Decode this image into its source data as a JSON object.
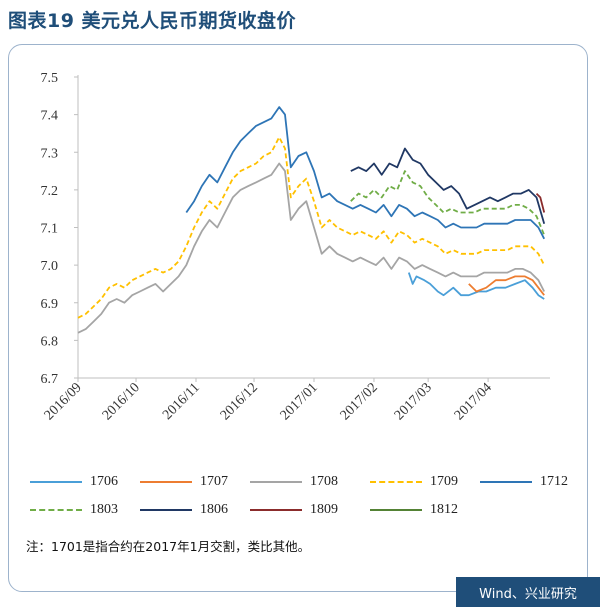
{
  "page": {
    "title": "图表19 美元兑人民币期货收盘价",
    "note": "注：1701是指合约在2017年1月交割，类比其他。",
    "source": "Wind、兴业研究"
  },
  "chart_data": {
    "type": "line",
    "ylim": [
      6.7,
      7.5
    ],
    "yticks": [
      "7.5",
      "7.4",
      "7.3",
      "7.2",
      "7.1",
      "7.0",
      "6.9",
      "6.8",
      "6.7"
    ],
    "xlim": [
      "2016-09-01",
      "2017-05-03"
    ],
    "xticks": [
      {
        "label": "2016/09",
        "date": "2016-09-01"
      },
      {
        "label": "2016/10",
        "date": "2016-10-01"
      },
      {
        "label": "2016/11",
        "date": "2016-11-01"
      },
      {
        "label": "2016/12",
        "date": "2016-12-01"
      },
      {
        "label": "2017/01",
        "date": "2017-01-01"
      },
      {
        "label": "2017/02",
        "date": "2017-02-01"
      },
      {
        "label": "2017/03",
        "date": "2017-03-01"
      },
      {
        "label": "2017/04",
        "date": "2017-04-01"
      }
    ],
    "grid": false,
    "legend_position": "bottom",
    "series": [
      {
        "name": "1706",
        "color": "#4a9fd8",
        "dash": false,
        "points": [
          [
            "2017-02-19",
            6.98
          ],
          [
            "2017-02-21",
            6.95
          ],
          [
            "2017-02-23",
            6.97
          ],
          [
            "2017-02-27",
            6.96
          ],
          [
            "2017-03-02",
            6.95
          ],
          [
            "2017-03-06",
            6.93
          ],
          [
            "2017-03-09",
            6.92
          ],
          [
            "2017-03-14",
            6.94
          ],
          [
            "2017-03-18",
            6.92
          ],
          [
            "2017-03-22",
            6.92
          ],
          [
            "2017-03-27",
            6.93
          ],
          [
            "2017-03-31",
            6.93
          ],
          [
            "2017-04-05",
            6.94
          ],
          [
            "2017-04-10",
            6.94
          ],
          [
            "2017-04-15",
            6.95
          ],
          [
            "2017-04-20",
            6.96
          ],
          [
            "2017-04-24",
            6.94
          ],
          [
            "2017-04-27",
            6.92
          ],
          [
            "2017-04-30",
            6.91
          ]
        ]
      },
      {
        "name": "1707",
        "color": "#ed7d31",
        "dash": false,
        "points": [
          [
            "2017-03-22",
            6.95
          ],
          [
            "2017-03-26",
            6.93
          ],
          [
            "2017-03-31",
            6.94
          ],
          [
            "2017-04-05",
            6.96
          ],
          [
            "2017-04-10",
            6.96
          ],
          [
            "2017-04-15",
            6.97
          ],
          [
            "2017-04-20",
            6.97
          ],
          [
            "2017-04-24",
            6.96
          ],
          [
            "2017-04-27",
            6.94
          ],
          [
            "2017-04-30",
            6.92
          ]
        ]
      },
      {
        "name": "1708",
        "color": "#a5a5a5",
        "dash": false,
        "points": [
          [
            "2016-09-01",
            6.82
          ],
          [
            "2016-09-05",
            6.83
          ],
          [
            "2016-09-09",
            6.85
          ],
          [
            "2016-09-13",
            6.87
          ],
          [
            "2016-09-17",
            6.9
          ],
          [
            "2016-09-21",
            6.91
          ],
          [
            "2016-09-25",
            6.9
          ],
          [
            "2016-09-29",
            6.92
          ],
          [
            "2016-10-03",
            6.93
          ],
          [
            "2016-10-07",
            6.94
          ],
          [
            "2016-10-11",
            6.95
          ],
          [
            "2016-10-15",
            6.93
          ],
          [
            "2016-10-19",
            6.95
          ],
          [
            "2016-10-23",
            6.97
          ],
          [
            "2016-10-27",
            7.0
          ],
          [
            "2016-10-31",
            7.05
          ],
          [
            "2016-11-04",
            7.09
          ],
          [
            "2016-11-08",
            7.12
          ],
          [
            "2016-11-12",
            7.1
          ],
          [
            "2016-11-16",
            7.14
          ],
          [
            "2016-11-20",
            7.18
          ],
          [
            "2016-11-24",
            7.2
          ],
          [
            "2016-11-28",
            7.21
          ],
          [
            "2016-12-02",
            7.22
          ],
          [
            "2016-12-06",
            7.23
          ],
          [
            "2016-12-10",
            7.24
          ],
          [
            "2016-12-14",
            7.27
          ],
          [
            "2016-12-17",
            7.25
          ],
          [
            "2016-12-20",
            7.12
          ],
          [
            "2016-12-24",
            7.15
          ],
          [
            "2016-12-28",
            7.17
          ],
          [
            "2017-01-01",
            7.1
          ],
          [
            "2017-01-05",
            7.03
          ],
          [
            "2017-01-09",
            7.05
          ],
          [
            "2017-01-13",
            7.03
          ],
          [
            "2017-01-17",
            7.02
          ],
          [
            "2017-01-21",
            7.01
          ],
          [
            "2017-01-25",
            7.02
          ],
          [
            "2017-01-29",
            7.01
          ],
          [
            "2017-02-02",
            7.0
          ],
          [
            "2017-02-06",
            7.02
          ],
          [
            "2017-02-10",
            6.99
          ],
          [
            "2017-02-14",
            7.02
          ],
          [
            "2017-02-18",
            7.01
          ],
          [
            "2017-02-22",
            6.99
          ],
          [
            "2017-02-26",
            7.0
          ],
          [
            "2017-03-02",
            6.99
          ],
          [
            "2017-03-06",
            6.98
          ],
          [
            "2017-03-10",
            6.97
          ],
          [
            "2017-03-14",
            6.98
          ],
          [
            "2017-03-18",
            6.97
          ],
          [
            "2017-03-22",
            6.97
          ],
          [
            "2017-03-26",
            6.97
          ],
          [
            "2017-03-30",
            6.98
          ],
          [
            "2017-04-03",
            6.98
          ],
          [
            "2017-04-07",
            6.98
          ],
          [
            "2017-04-11",
            6.98
          ],
          [
            "2017-04-15",
            6.99
          ],
          [
            "2017-04-19",
            6.99
          ],
          [
            "2017-04-23",
            6.98
          ],
          [
            "2017-04-27",
            6.96
          ],
          [
            "2017-04-30",
            6.93
          ]
        ]
      },
      {
        "name": "1709",
        "color": "#ffc000",
        "dash": true,
        "points": [
          [
            "2016-09-01",
            6.86
          ],
          [
            "2016-09-05",
            6.87
          ],
          [
            "2016-09-09",
            6.89
          ],
          [
            "2016-09-13",
            6.91
          ],
          [
            "2016-09-17",
            6.94
          ],
          [
            "2016-09-21",
            6.95
          ],
          [
            "2016-09-25",
            6.94
          ],
          [
            "2016-09-29",
            6.96
          ],
          [
            "2016-10-03",
            6.97
          ],
          [
            "2016-10-07",
            6.98
          ],
          [
            "2016-10-11",
            6.99
          ],
          [
            "2016-10-15",
            6.98
          ],
          [
            "2016-10-19",
            6.99
          ],
          [
            "2016-10-23",
            7.01
          ],
          [
            "2016-10-27",
            7.05
          ],
          [
            "2016-10-31",
            7.1
          ],
          [
            "2016-11-04",
            7.14
          ],
          [
            "2016-11-08",
            7.17
          ],
          [
            "2016-11-12",
            7.15
          ],
          [
            "2016-11-16",
            7.19
          ],
          [
            "2016-11-20",
            7.23
          ],
          [
            "2016-11-24",
            7.25
          ],
          [
            "2016-11-28",
            7.26
          ],
          [
            "2016-12-02",
            7.27
          ],
          [
            "2016-12-06",
            7.29
          ],
          [
            "2016-12-10",
            7.3
          ],
          [
            "2016-12-14",
            7.34
          ],
          [
            "2016-12-17",
            7.31
          ],
          [
            "2016-12-20",
            7.18
          ],
          [
            "2016-12-24",
            7.21
          ],
          [
            "2016-12-28",
            7.23
          ],
          [
            "2017-01-01",
            7.17
          ],
          [
            "2017-01-05",
            7.1
          ],
          [
            "2017-01-09",
            7.12
          ],
          [
            "2017-01-13",
            7.1
          ],
          [
            "2017-01-17",
            7.09
          ],
          [
            "2017-01-21",
            7.08
          ],
          [
            "2017-01-25",
            7.09
          ],
          [
            "2017-01-29",
            7.08
          ],
          [
            "2017-02-02",
            7.07
          ],
          [
            "2017-02-06",
            7.09
          ],
          [
            "2017-02-10",
            7.06
          ],
          [
            "2017-02-14",
            7.09
          ],
          [
            "2017-02-18",
            7.08
          ],
          [
            "2017-02-22",
            7.06
          ],
          [
            "2017-02-26",
            7.07
          ],
          [
            "2017-03-02",
            7.06
          ],
          [
            "2017-03-06",
            7.05
          ],
          [
            "2017-03-10",
            7.03
          ],
          [
            "2017-03-14",
            7.04
          ],
          [
            "2017-03-18",
            7.03
          ],
          [
            "2017-03-22",
            7.03
          ],
          [
            "2017-03-26",
            7.03
          ],
          [
            "2017-03-30",
            7.04
          ],
          [
            "2017-04-03",
            7.04
          ],
          [
            "2017-04-07",
            7.04
          ],
          [
            "2017-04-11",
            7.04
          ],
          [
            "2017-04-15",
            7.05
          ],
          [
            "2017-04-19",
            7.05
          ],
          [
            "2017-04-23",
            7.05
          ],
          [
            "2017-04-27",
            7.03
          ],
          [
            "2017-04-30",
            7.0
          ]
        ]
      },
      {
        "name": "1712",
        "color": "#2e75b6",
        "dash": false,
        "points": [
          [
            "2016-10-27",
            7.14
          ],
          [
            "2016-10-31",
            7.17
          ],
          [
            "2016-11-04",
            7.21
          ],
          [
            "2016-11-08",
            7.24
          ],
          [
            "2016-11-12",
            7.22
          ],
          [
            "2016-11-16",
            7.26
          ],
          [
            "2016-11-20",
            7.3
          ],
          [
            "2016-11-24",
            7.33
          ],
          [
            "2016-11-28",
            7.35
          ],
          [
            "2016-12-02",
            7.37
          ],
          [
            "2016-12-06",
            7.38
          ],
          [
            "2016-12-10",
            7.39
          ],
          [
            "2016-12-14",
            7.42
          ],
          [
            "2016-12-17",
            7.4
          ],
          [
            "2016-12-20",
            7.26
          ],
          [
            "2016-12-24",
            7.29
          ],
          [
            "2016-12-28",
            7.3
          ],
          [
            "2017-01-01",
            7.25
          ],
          [
            "2017-01-05",
            7.18
          ],
          [
            "2017-01-09",
            7.19
          ],
          [
            "2017-01-13",
            7.17
          ],
          [
            "2017-01-17",
            7.16
          ],
          [
            "2017-01-21",
            7.15
          ],
          [
            "2017-01-25",
            7.16
          ],
          [
            "2017-01-29",
            7.15
          ],
          [
            "2017-02-02",
            7.14
          ],
          [
            "2017-02-06",
            7.16
          ],
          [
            "2017-02-10",
            7.13
          ],
          [
            "2017-02-14",
            7.16
          ],
          [
            "2017-02-18",
            7.15
          ],
          [
            "2017-02-22",
            7.13
          ],
          [
            "2017-02-26",
            7.14
          ],
          [
            "2017-03-02",
            7.13
          ],
          [
            "2017-03-06",
            7.12
          ],
          [
            "2017-03-10",
            7.1
          ],
          [
            "2017-03-14",
            7.11
          ],
          [
            "2017-03-18",
            7.1
          ],
          [
            "2017-03-22",
            7.1
          ],
          [
            "2017-03-26",
            7.1
          ],
          [
            "2017-03-30",
            7.11
          ],
          [
            "2017-04-03",
            7.11
          ],
          [
            "2017-04-07",
            7.11
          ],
          [
            "2017-04-11",
            7.11
          ],
          [
            "2017-04-15",
            7.12
          ],
          [
            "2017-04-19",
            7.12
          ],
          [
            "2017-04-23",
            7.12
          ],
          [
            "2017-04-27",
            7.1
          ],
          [
            "2017-04-30",
            7.07
          ]
        ]
      },
      {
        "name": "1803",
        "color": "#70ad47",
        "dash": true,
        "points": [
          [
            "2017-01-20",
            7.17
          ],
          [
            "2017-01-24",
            7.19
          ],
          [
            "2017-01-28",
            7.18
          ],
          [
            "2017-02-01",
            7.2
          ],
          [
            "2017-02-05",
            7.18
          ],
          [
            "2017-02-09",
            7.21
          ],
          [
            "2017-02-13",
            7.2
          ],
          [
            "2017-02-17",
            7.25
          ],
          [
            "2017-02-21",
            7.22
          ],
          [
            "2017-02-25",
            7.21
          ],
          [
            "2017-03-01",
            7.18
          ],
          [
            "2017-03-05",
            7.16
          ],
          [
            "2017-03-09",
            7.14
          ],
          [
            "2017-03-13",
            7.15
          ],
          [
            "2017-03-17",
            7.14
          ],
          [
            "2017-03-21",
            7.14
          ],
          [
            "2017-03-25",
            7.14
          ],
          [
            "2017-03-29",
            7.15
          ],
          [
            "2017-04-02",
            7.15
          ],
          [
            "2017-04-06",
            7.15
          ],
          [
            "2017-04-10",
            7.15
          ],
          [
            "2017-04-14",
            7.16
          ],
          [
            "2017-04-18",
            7.16
          ],
          [
            "2017-04-22",
            7.15
          ],
          [
            "2017-04-26",
            7.13
          ],
          [
            "2017-04-30",
            7.08
          ]
        ]
      },
      {
        "name": "1806",
        "color": "#203864",
        "dash": false,
        "points": [
          [
            "2017-01-20",
            7.25
          ],
          [
            "2017-01-24",
            7.26
          ],
          [
            "2017-01-28",
            7.25
          ],
          [
            "2017-02-01",
            7.27
          ],
          [
            "2017-02-05",
            7.24
          ],
          [
            "2017-02-09",
            7.27
          ],
          [
            "2017-02-13",
            7.26
          ],
          [
            "2017-02-17",
            7.31
          ],
          [
            "2017-02-21",
            7.28
          ],
          [
            "2017-02-25",
            7.27
          ],
          [
            "2017-03-01",
            7.24
          ],
          [
            "2017-03-05",
            7.22
          ],
          [
            "2017-03-09",
            7.2
          ],
          [
            "2017-03-13",
            7.21
          ],
          [
            "2017-03-17",
            7.19
          ],
          [
            "2017-03-21",
            7.15
          ],
          [
            "2017-03-25",
            7.16
          ],
          [
            "2017-03-29",
            7.17
          ],
          [
            "2017-04-02",
            7.18
          ],
          [
            "2017-04-06",
            7.17
          ],
          [
            "2017-04-10",
            7.18
          ],
          [
            "2017-04-14",
            7.19
          ],
          [
            "2017-04-18",
            7.19
          ],
          [
            "2017-04-22",
            7.2
          ],
          [
            "2017-04-26",
            7.18
          ],
          [
            "2017-04-30",
            7.11
          ]
        ]
      },
      {
        "name": "1809",
        "color": "#8b2c2c",
        "dash": false,
        "points": [
          [
            "2017-04-26",
            7.19
          ],
          [
            "2017-04-28",
            7.18
          ],
          [
            "2017-04-30",
            7.14
          ]
        ]
      },
      {
        "name": "1812",
        "color": "#548235",
        "dash": false,
        "points": []
      }
    ]
  }
}
